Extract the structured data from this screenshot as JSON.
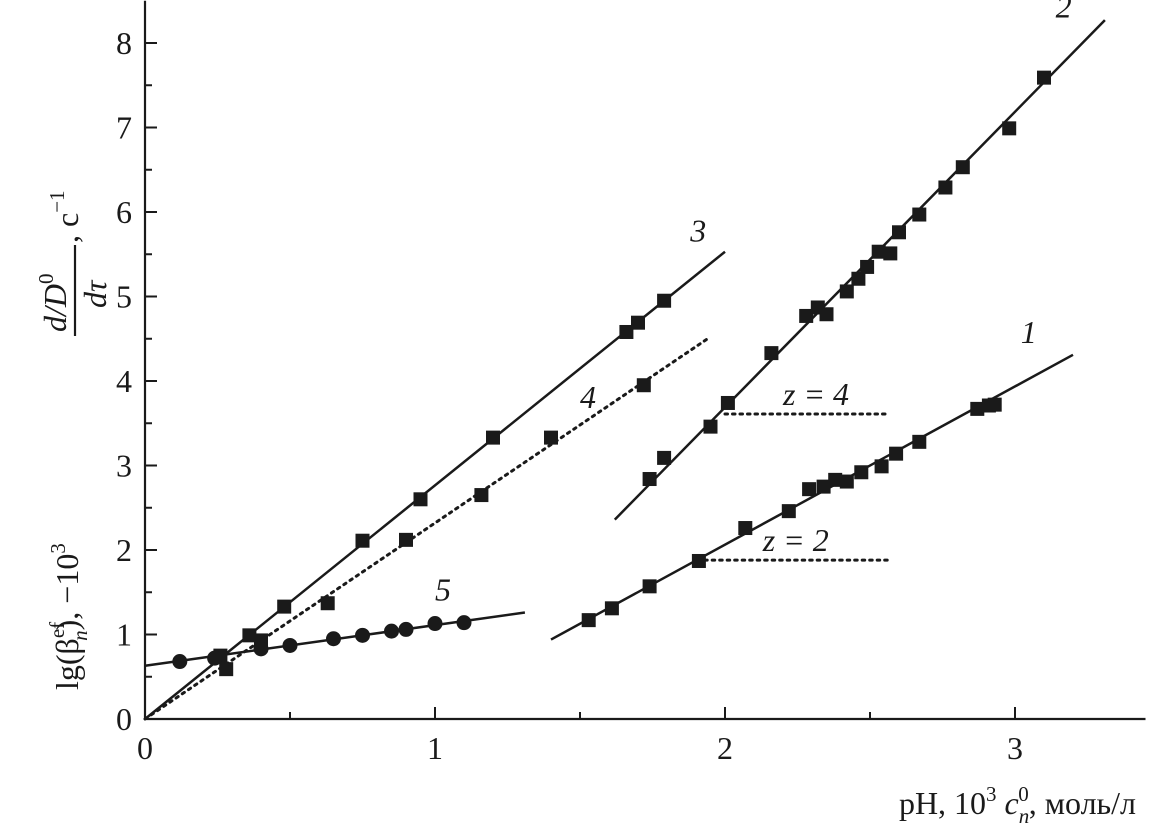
{
  "chart_data": {
    "type": "scatter",
    "xlabel": {
      "pre": "pH, 10",
      "sup1": "3",
      "c": "c",
      "sub": "n",
      "sup2": "0",
      "post": ", моль/л"
    },
    "ylabel": {
      "lg": "lg(β",
      "sup_ef": "ef",
      "sub_n": "n",
      "close": "),  −10",
      "sup3": "3",
      "num": "d/D",
      "num_sup": "0",
      "den": "dτ",
      "unit": ", с",
      "unit_sup": "−1"
    },
    "xlim": [
      0,
      3.45
    ],
    "ylim": [
      0,
      8.5
    ],
    "x_ticks": [
      0,
      1,
      2,
      3
    ],
    "x_tick_labels": [
      "0",
      "1",
      "2",
      "3"
    ],
    "y_ticks": [
      0,
      1,
      2,
      3,
      4,
      5,
      6,
      7,
      8
    ],
    "y_tick_labels": [
      "0",
      "1",
      "2",
      "3",
      "4",
      "5",
      "6",
      "7",
      "8"
    ],
    "grid": false,
    "series": [
      {
        "label": "1",
        "marker": "square",
        "line": "solid",
        "points": [
          [
            1.53,
            1.17
          ],
          [
            1.61,
            1.31
          ],
          [
            1.74,
            1.57
          ],
          [
            1.91,
            1.87
          ],
          [
            2.07,
            2.26
          ],
          [
            2.22,
            2.46
          ],
          [
            2.29,
            2.72
          ],
          [
            2.34,
            2.75
          ],
          [
            2.38,
            2.83
          ],
          [
            2.42,
            2.81
          ],
          [
            2.47,
            2.92
          ],
          [
            2.54,
            2.99
          ],
          [
            2.59,
            3.14
          ],
          [
            2.67,
            3.28
          ],
          [
            2.87,
            3.67
          ],
          [
            2.91,
            3.71
          ],
          [
            2.93,
            3.72
          ]
        ],
        "fit": [
          [
            1.4,
            0.94
          ],
          [
            3.2,
            4.31
          ]
        ]
      },
      {
        "label": "2",
        "marker": "square",
        "line": "solid",
        "points": [
          [
            1.74,
            2.84
          ],
          [
            1.79,
            3.09
          ],
          [
            1.95,
            3.46
          ],
          [
            2.01,
            3.74
          ],
          [
            2.16,
            4.33
          ],
          [
            2.28,
            4.77
          ],
          [
            2.32,
            4.87
          ],
          [
            2.35,
            4.79
          ],
          [
            2.42,
            5.06
          ],
          [
            2.46,
            5.21
          ],
          [
            2.49,
            5.35
          ],
          [
            2.53,
            5.53
          ],
          [
            2.57,
            5.51
          ],
          [
            2.6,
            5.76
          ],
          [
            2.67,
            5.97
          ],
          [
            2.76,
            6.29
          ],
          [
            2.82,
            6.53
          ],
          [
            2.98,
            6.99
          ],
          [
            3.1,
            7.59
          ]
        ],
        "fit": [
          [
            1.62,
            2.36
          ],
          [
            3.31,
            8.27
          ]
        ]
      },
      {
        "label": "3",
        "marker": "square",
        "line": "solid",
        "points": [
          [
            0.28,
            0.59
          ],
          [
            0.36,
            0.99
          ],
          [
            0.4,
            0.93
          ],
          [
            0.48,
            1.33
          ],
          [
            0.75,
            2.11
          ],
          [
            0.95,
            2.6
          ],
          [
            1.2,
            3.33
          ],
          [
            1.66,
            4.58
          ],
          [
            1.7,
            4.69
          ],
          [
            1.79,
            4.95
          ]
        ],
        "fit": [
          [
            0.0,
            0.0
          ],
          [
            2.0,
            5.53
          ]
        ]
      },
      {
        "label": "4",
        "marker": "square",
        "line": "dotted",
        "points": [
          [
            0.26,
            0.75
          ],
          [
            0.63,
            1.37
          ],
          [
            0.9,
            2.12
          ],
          [
            1.16,
            2.65
          ],
          [
            1.4,
            3.33
          ],
          [
            1.72,
            3.95
          ]
        ],
        "fit": [
          [
            0.0,
            0.0
          ],
          [
            1.94,
            4.5
          ]
        ]
      },
      {
        "label": "5",
        "marker": "circle",
        "line": "solid",
        "points": [
          [
            0.12,
            0.68
          ],
          [
            0.24,
            0.72
          ],
          [
            0.4,
            0.83
          ],
          [
            0.5,
            0.87
          ],
          [
            0.65,
            0.95
          ],
          [
            0.75,
            0.99
          ],
          [
            0.85,
            1.04
          ],
          [
            0.9,
            1.06
          ],
          [
            1.0,
            1.13
          ],
          [
            1.1,
            1.14
          ]
        ],
        "fit": [
          [
            0.0,
            0.63
          ],
          [
            1.31,
            1.26
          ]
        ]
      }
    ],
    "annotations": [
      {
        "text": "z = 4",
        "x_from": 2.0,
        "x_to": 2.56,
        "y": 3.61
      },
      {
        "text": "z = 2",
        "x_from": 1.93,
        "x_to": 2.56,
        "y": 1.88
      }
    ]
  }
}
